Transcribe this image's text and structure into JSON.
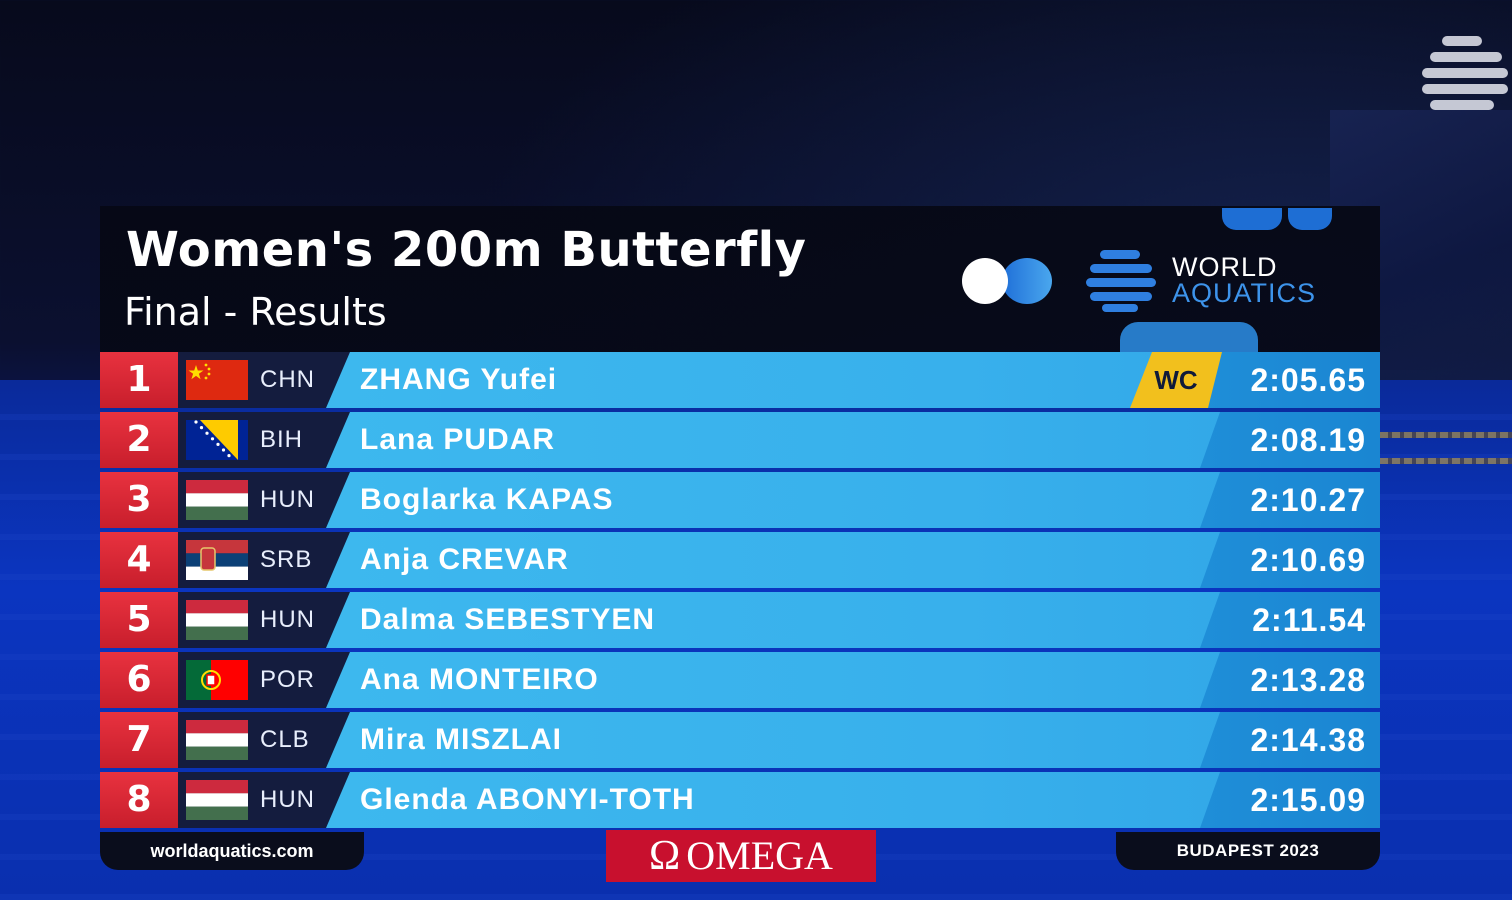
{
  "event": {
    "title": "Women's 200m Butterfly",
    "subtitle": "Final - Results"
  },
  "branding": {
    "org_line1": "WORLD",
    "org_line2": "AQUATICS",
    "website": "worldaquatics.com",
    "sponsor": "OMEGA",
    "sponsor_symbol": "Ω",
    "location": "BUDAPEST 2023",
    "accent_color": "#3db8ee",
    "rank_color": "#e8323f",
    "record_color": "#f2c01d"
  },
  "results": [
    {
      "rank": "1",
      "country": "CHN",
      "flag": "china-flag",
      "name": "ZHANG Yufei",
      "badge": "WC",
      "time": "2:05.65"
    },
    {
      "rank": "2",
      "country": "BIH",
      "flag": "bosnia-flag",
      "name": "Lana PUDAR",
      "badge": "",
      "time": "2:08.19"
    },
    {
      "rank": "3",
      "country": "HUN",
      "flag": "hungary-flag",
      "name": "Boglarka KAPAS",
      "badge": "",
      "time": "2:10.27"
    },
    {
      "rank": "4",
      "country": "SRB",
      "flag": "serbia-flag",
      "name": "Anja CREVAR",
      "badge": "",
      "time": "2:10.69"
    },
    {
      "rank": "5",
      "country": "HUN",
      "flag": "hungary-flag",
      "name": "Dalma SEBESTYEN",
      "badge": "",
      "time": "2:11.54"
    },
    {
      "rank": "6",
      "country": "POR",
      "flag": "portugal-flag",
      "name": "Ana MONTEIRO",
      "badge": "",
      "time": "2:13.28"
    },
    {
      "rank": "7",
      "country": "CLB",
      "flag": "hungary-flag",
      "name": "Mira MISZLAI",
      "badge": "",
      "time": "2:14.38"
    },
    {
      "rank": "8",
      "country": "HUN",
      "flag": "hungary-flag",
      "name": "Glenda ABONYI-TOTH",
      "badge": "",
      "time": "2:15.09"
    }
  ]
}
